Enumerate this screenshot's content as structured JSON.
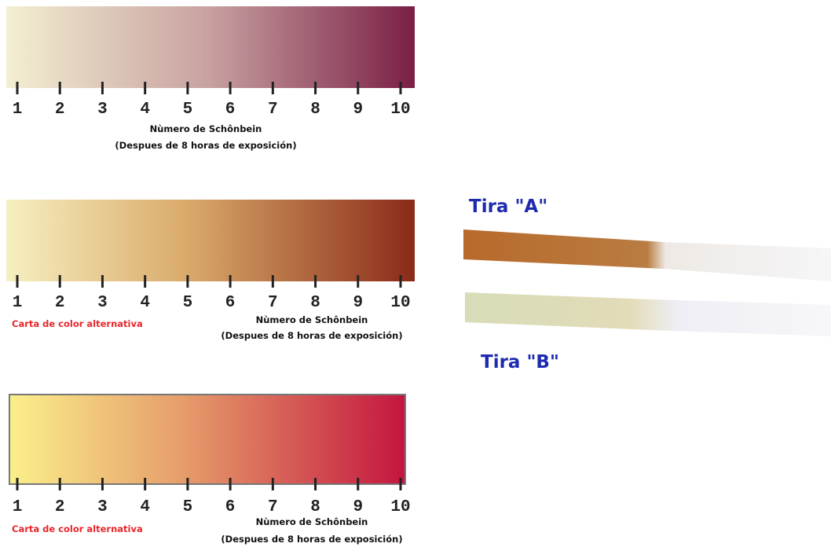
{
  "scales": [
    {
      "ticks": [
        1,
        2,
        3,
        4,
        5,
        6,
        7,
        8,
        9,
        10
      ],
      "title": "Nùmero de Schônbein",
      "subtitle": "(Despues de 8 horas de exposición)"
    },
    {
      "ticks": [
        1,
        2,
        3,
        4,
        5,
        6,
        7,
        8,
        9,
        10
      ],
      "note": "Carta de color alternativa",
      "title": "Nùmero de Schônbein",
      "subtitle": "(Despues de 8 horas de exposición)"
    },
    {
      "ticks": [
        1,
        2,
        3,
        4,
        5,
        6,
        7,
        8,
        9,
        10
      ],
      "note": "Carta de color alternativa",
      "title": "Nùmero de Schônbein",
      "subtitle": "(Despues de 8 horas de exposición)"
    }
  ],
  "strips": [
    {
      "label": "Tira \"A\""
    },
    {
      "label": "Tira \"B\""
    }
  ]
}
